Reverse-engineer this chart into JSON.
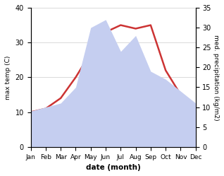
{
  "months": [
    "Jan",
    "Feb",
    "Mar",
    "Apr",
    "May",
    "Jun",
    "Jul",
    "Aug",
    "Sep",
    "Oct",
    "Nov",
    "Dec"
  ],
  "temp": [
    10,
    11,
    14,
    20,
    27,
    33,
    35,
    34,
    35,
    22,
    15,
    12
  ],
  "precip": [
    9,
    10,
    11,
    15,
    30,
    32,
    24,
    28,
    19,
    17,
    14,
    11
  ],
  "temp_color": "#cc3333",
  "precip_fill_color": "#c5cef0",
  "temp_ylim": [
    0,
    40
  ],
  "precip_ylim": [
    0,
    35
  ],
  "xlabel": "date (month)",
  "ylabel_left": "max temp (C)",
  "ylabel_right": "med. precipitation (kg/m2)",
  "bg_color": "#ffffff",
  "temp_linewidth": 1.8
}
